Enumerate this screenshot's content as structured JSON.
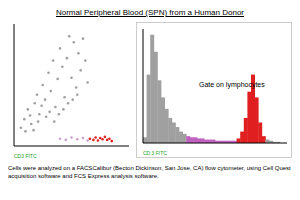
{
  "title": "Normal Peripheral Blood (SPN) from a Human Donor",
  "caption": "Cells were analyzed on a FACSCalibur (Becton Dickinson, San Jose, CA) flow cytometer, using Cell Quest acquisition software and FCS Express analysis software.",
  "chart_data": [
    {
      "type": "scatter",
      "x_label": "CD3 FITC",
      "xlim": [
        0,
        1000
      ],
      "ylim": [
        0,
        1000
      ],
      "tick_labels": false,
      "series": [
        {
          "color": "#a0a0a0",
          "points": [
            [
              60,
              150
            ],
            [
              90,
              220
            ],
            [
              120,
              300
            ],
            [
              150,
              180
            ],
            [
              180,
              350
            ],
            [
              200,
              420
            ],
            [
              220,
              260
            ],
            [
              250,
              500
            ],
            [
              270,
              380
            ],
            [
              300,
              600
            ],
            [
              320,
              450
            ],
            [
              340,
              700
            ],
            [
              360,
              320
            ],
            [
              380,
              550
            ],
            [
              400,
              800
            ],
            [
              420,
              650
            ],
            [
              440,
              400
            ],
            [
              460,
              720
            ],
            [
              480,
              900
            ],
            [
              500,
              560
            ],
            [
              520,
              850
            ],
            [
              540,
              480
            ],
            [
              560,
              760
            ],
            [
              580,
              620
            ],
            [
              600,
              880
            ],
            [
              620,
              700
            ],
            [
              640,
              520
            ],
            [
              100,
              120
            ],
            [
              140,
              250
            ],
            [
              170,
              130
            ],
            [
              210,
              200
            ],
            [
              240,
              330
            ],
            [
              280,
              240
            ],
            [
              310,
              280
            ],
            [
              350,
              200
            ],
            [
              390,
              260
            ],
            [
              430,
              300
            ],
            [
              470,
              350
            ],
            [
              510,
              380
            ],
            [
              550,
              420
            ]
          ]
        },
        {
          "color": "#c8a0c8",
          "points": [
            [
              400,
              60
            ],
            [
              450,
              50
            ],
            [
              500,
              70
            ],
            [
              550,
              55
            ],
            [
              600,
              65
            ],
            [
              640,
              45
            ]
          ]
        },
        {
          "color": "#e02020",
          "points": [
            [
              660,
              60
            ],
            [
              690,
              50
            ],
            [
              710,
              70
            ],
            [
              730,
              45
            ],
            [
              750,
              65
            ],
            [
              770,
              55
            ],
            [
              790,
              75
            ],
            [
              810,
              50
            ],
            [
              830,
              60
            ],
            [
              850,
              40
            ]
          ]
        }
      ]
    },
    {
      "type": "histogram",
      "x_label": "CD 3 FITC",
      "annotation": "Gate on lymphocytes",
      "ylim": [
        0,
        100
      ],
      "tick_labels": false,
      "bins": [
        0,
        25,
        50,
        75,
        100,
        125,
        150,
        175,
        200,
        225,
        250,
        275,
        300,
        325,
        350,
        375,
        400,
        425,
        450,
        475,
        500,
        525,
        550,
        575,
        600,
        625,
        650,
        675,
        700,
        725,
        750,
        775,
        800,
        825,
        850,
        875,
        900,
        925,
        950,
        975,
        1000
      ],
      "counts": [
        5,
        60,
        95,
        80,
        55,
        40,
        30,
        22,
        18,
        14,
        10,
        8,
        6,
        5,
        5,
        4,
        4,
        3,
        3,
        3,
        2,
        2,
        2,
        2,
        2,
        2,
        4,
        10,
        22,
        45,
        60,
        40,
        18,
        6,
        3,
        2,
        1,
        1,
        0,
        0
      ],
      "colors": [
        "#a0a0a0",
        "#a0a0a0",
        "#a0a0a0",
        "#a0a0a0",
        "#a0a0a0",
        "#a0a0a0",
        "#a0a0a0",
        "#a0a0a0",
        "#a0a0a0",
        "#a0a0a0",
        "#a0a0a0",
        "#a0a0a0",
        "#c060c0",
        "#c060c0",
        "#c060c0",
        "#c060c0",
        "#c060c0",
        "#c060c0",
        "#c060c0",
        "#c060c0",
        "#c060c0",
        "#c060c0",
        "#c060c0",
        "#c060c0",
        "#c060c0",
        "#c060c0",
        "#e02020",
        "#e02020",
        "#e02020",
        "#e02020",
        "#e02020",
        "#e02020",
        "#e02020",
        "#e02020",
        "#a0a0a0",
        "#a0a0a0",
        "#a0a0a0",
        "#a0a0a0",
        "#a0a0a0",
        "#a0a0a0"
      ]
    }
  ]
}
